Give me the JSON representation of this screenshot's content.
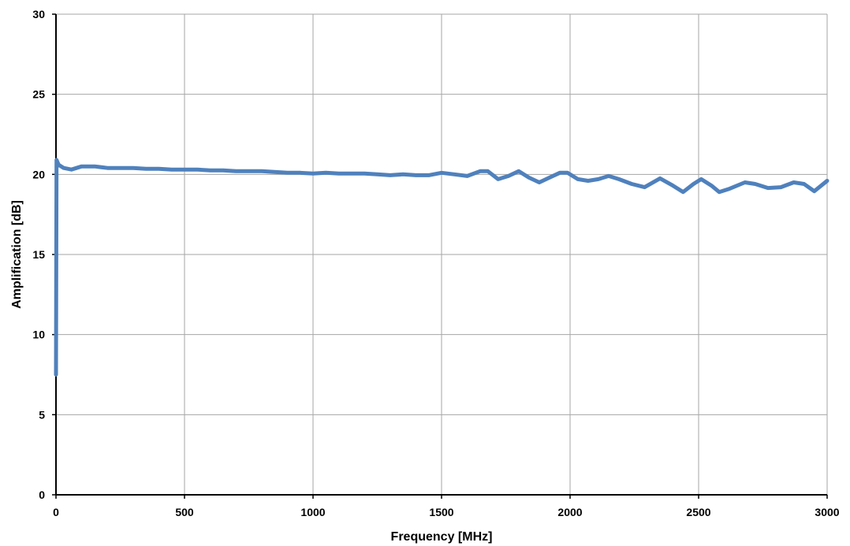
{
  "chart_data": {
    "type": "line",
    "title": "",
    "xlabel": "Frequency [MHz]",
    "ylabel": "Amplification [dB]",
    "xlim": [
      0,
      3000
    ],
    "ylim": [
      0,
      30
    ],
    "x_ticks": [
      0,
      500,
      1000,
      1500,
      2000,
      2500,
      3000
    ],
    "y_ticks": [
      0,
      5,
      10,
      15,
      20,
      25,
      30
    ],
    "grid": true,
    "legend": "none",
    "series": [
      {
        "color": "#4f81bd",
        "x": [
          0,
          2,
          10,
          30,
          60,
          100,
          150,
          200,
          250,
          300,
          350,
          400,
          450,
          500,
          550,
          600,
          650,
          700,
          750,
          800,
          850,
          900,
          950,
          1000,
          1050,
          1100,
          1150,
          1200,
          1250,
          1300,
          1350,
          1400,
          1450,
          1500,
          1550,
          1600,
          1650,
          1680,
          1720,
          1760,
          1800,
          1840,
          1880,
          1920,
          1960,
          1990,
          2030,
          2070,
          2110,
          2150,
          2190,
          2240,
          2290,
          2350,
          2400,
          2440,
          2480,
          2510,
          2550,
          2580,
          2620,
          2680,
          2720,
          2770,
          2820,
          2870,
          2910,
          2950,
          3000
        ],
        "y": [
          7.5,
          20.9,
          20.6,
          20.4,
          20.3,
          20.5,
          20.5,
          20.4,
          20.4,
          20.4,
          20.35,
          20.35,
          20.3,
          20.3,
          20.3,
          20.25,
          20.25,
          20.2,
          20.2,
          20.2,
          20.15,
          20.1,
          20.1,
          20.05,
          20.1,
          20.05,
          20.05,
          20.05,
          20.0,
          19.95,
          20.0,
          19.95,
          19.95,
          20.1,
          20.0,
          19.9,
          20.2,
          20.2,
          19.7,
          19.9,
          20.2,
          19.8,
          19.5,
          19.8,
          20.1,
          20.1,
          19.7,
          19.6,
          19.7,
          19.9,
          19.7,
          19.4,
          19.2,
          19.75,
          19.3,
          18.9,
          19.4,
          19.7,
          19.3,
          18.9,
          19.1,
          19.5,
          19.4,
          19.15,
          19.2,
          19.5,
          19.4,
          18.95,
          19.6
        ]
      }
    ]
  }
}
